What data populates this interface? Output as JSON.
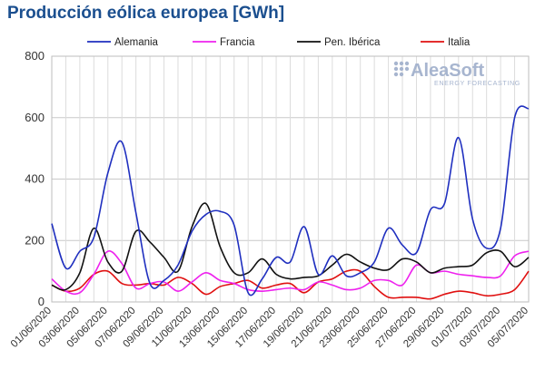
{
  "chart_data": {
    "type": "line",
    "title": "Producción eólica europea [GWh]",
    "logo": {
      "name": "AleaSoft",
      "tagline": "ENERGY FORECASTING"
    },
    "legend_position": "top",
    "grid": {
      "horizontal": true,
      "vertical": true
    },
    "ylim": [
      0,
      800
    ],
    "y_ticks": [
      0,
      200,
      400,
      600,
      800
    ],
    "x": [
      "01/06/2020",
      "02/06/2020",
      "03/06/2020",
      "04/06/2020",
      "05/06/2020",
      "06/06/2020",
      "07/06/2020",
      "08/06/2020",
      "09/06/2020",
      "10/06/2020",
      "11/06/2020",
      "12/06/2020",
      "13/06/2020",
      "14/06/2020",
      "15/06/2020",
      "16/06/2020",
      "17/06/2020",
      "18/06/2020",
      "19/06/2020",
      "20/06/2020",
      "21/06/2020",
      "22/06/2020",
      "23/06/2020",
      "24/06/2020",
      "25/06/2020",
      "26/06/2020",
      "27/06/2020",
      "28/06/2020",
      "29/06/2020",
      "30/06/2020",
      "01/07/2020",
      "02/07/2020",
      "03/07/2020",
      "04/07/2020",
      "05/07/2020"
    ],
    "x_tick_labels": [
      "01/06/2020",
      "03/06/2020",
      "05/06/2020",
      "07/06/2020",
      "09/06/2020",
      "11/06/2020",
      "13/06/2020",
      "15/06/2020",
      "17/06/2020",
      "19/06/2020",
      "21/06/2020",
      "23/06/2020",
      "25/06/2020",
      "27/06/2020",
      "29/06/2020",
      "01/07/2020",
      "03/07/2020",
      "05/07/2020"
    ],
    "series": [
      {
        "name": "Alemania",
        "color": "#1f2fbf",
        "values": [
          255,
          110,
          165,
          210,
          420,
          520,
          290,
          60,
          70,
          120,
          230,
          285,
          295,
          250,
          30,
          75,
          145,
          130,
          245,
          90,
          150,
          85,
          95,
          130,
          240,
          185,
          160,
          300,
          320,
          535,
          270,
          175,
          240,
          600,
          630
        ]
      },
      {
        "name": "Francia",
        "color": "#ee22ee",
        "values": [
          75,
          35,
          30,
          90,
          165,
          125,
          45,
          60,
          65,
          35,
          65,
          95,
          70,
          60,
          40,
          35,
          40,
          45,
          40,
          65,
          55,
          40,
          45,
          70,
          70,
          55,
          120,
          95,
          100,
          90,
          85,
          80,
          85,
          150,
          165
        ]
      },
      {
        "name": "Pen. Ibérica",
        "color": "#111111",
        "values": [
          55,
          40,
          95,
          240,
          130,
          100,
          230,
          195,
          145,
          100,
          245,
          320,
          180,
          95,
          95,
          140,
          90,
          75,
          80,
          85,
          120,
          155,
          130,
          110,
          105,
          140,
          130,
          95,
          110,
          115,
          120,
          160,
          165,
          115,
          145
        ]
      },
      {
        "name": "Italia",
        "color": "#e01010",
        "values": [
          55,
          35,
          45,
          90,
          100,
          60,
          55,
          60,
          55,
          80,
          60,
          25,
          50,
          60,
          70,
          45,
          55,
          60,
          30,
          65,
          75,
          100,
          100,
          50,
          15,
          15,
          15,
          10,
          25,
          35,
          30,
          20,
          25,
          40,
          100
        ]
      }
    ]
  }
}
